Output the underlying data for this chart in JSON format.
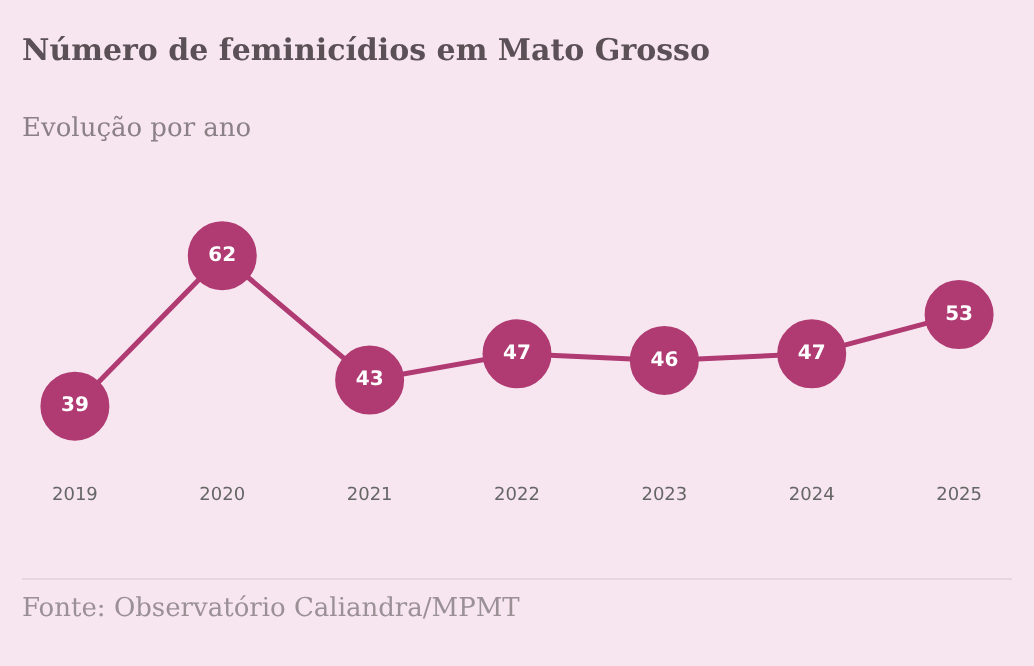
{
  "chart_data": {
    "type": "line",
    "title": "Número de feminicídios em Mato Grosso",
    "subtitle": "Evolução por ano",
    "categories": [
      "2019",
      "2020",
      "2021",
      "2022",
      "2023",
      "2024",
      "2025"
    ],
    "series": [
      {
        "color": "#b03a72",
        "values": [
          39,
          62,
          43,
          47,
          46,
          47,
          53
        ]
      }
    ],
    "data_labels": true,
    "marker": "circle",
    "line_style": "solid",
    "grid": false,
    "legend": false,
    "tick_labels": "x",
    "annotations": [
      "Fonte: Observatório Caliandra/MPMT"
    ]
  }
}
